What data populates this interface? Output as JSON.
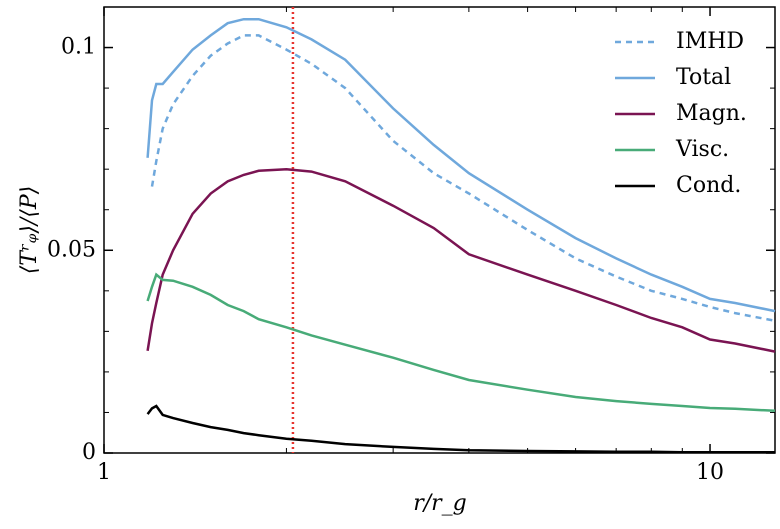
{
  "chart_data": {
    "type": "line",
    "xlabel": "r/r_g",
    "ylabel": "⟨Tʳᵩ⟩/⟨P⟩",
    "x": [
      1.18,
      1.2,
      1.22,
      1.25,
      1.3,
      1.4,
      1.5,
      1.6,
      1.7,
      1.8,
      2.0,
      2.2,
      2.5,
      3,
      3.5,
      4,
      5,
      6,
      7,
      8,
      9,
      10,
      11,
      12.8
    ],
    "series": [
      {
        "name": "IMHD",
        "color": "#6fa8dc",
        "dashed": true,
        "values": [
          null,
          0.0657,
          0.072,
          0.08,
          0.086,
          0.093,
          0.098,
          0.101,
          0.103,
          0.103,
          0.0995,
          0.096,
          0.09,
          0.077,
          0.069,
          0.064,
          0.055,
          0.048,
          0.0435,
          0.04,
          0.038,
          0.036,
          0.0345,
          0.0326
        ]
      },
      {
        "name": "Total",
        "color": "#6fa8dc",
        "dashed": false,
        "values": [
          0.0728,
          0.087,
          0.091,
          0.091,
          0.094,
          0.0995,
          0.103,
          0.106,
          0.107,
          0.107,
          0.105,
          0.102,
          0.097,
          0.085,
          0.076,
          0.069,
          0.06,
          0.053,
          0.048,
          0.044,
          0.041,
          0.038,
          0.037,
          0.035
        ]
      },
      {
        "name": "Magn.",
        "color": "#7a1452",
        "dashed": false,
        "values": [
          0.0252,
          0.032,
          0.037,
          0.044,
          0.05,
          0.059,
          0.064,
          0.067,
          0.0686,
          0.0696,
          0.07,
          0.0694,
          0.067,
          0.061,
          0.0555,
          0.049,
          0.044,
          0.04,
          0.0365,
          0.0333,
          0.031,
          0.028,
          0.027,
          0.025
        ]
      },
      {
        "name": "Visc.",
        "color": "#48ab78",
        "dashed": false,
        "values": [
          0.0375,
          0.041,
          0.044,
          0.0427,
          0.0425,
          0.041,
          0.039,
          0.0365,
          0.035,
          0.033,
          0.031,
          0.029,
          0.0267,
          0.0235,
          0.0205,
          0.018,
          0.0156,
          0.0138,
          0.0128,
          0.0121,
          0.0116,
          0.0111,
          0.0109,
          0.0104
        ]
      },
      {
        "name": "Cond.",
        "color": "#000000",
        "dashed": false,
        "values": [
          0.0096,
          0.011,
          0.0116,
          0.0094,
          0.0086,
          0.0074,
          0.0064,
          0.0057,
          0.0049,
          0.0044,
          0.0035,
          0.003,
          0.0022,
          0.0015,
          0.001,
          0.0007,
          0.0005,
          0.0004,
          0.0003,
          0.0003,
          0.0002,
          0.0002,
          0.0002,
          0.0002
        ]
      }
    ],
    "xscale": "log",
    "xlim": [
      1,
      12.8
    ],
    "ylim": [
      0,
      0.11
    ],
    "xticks": [
      1,
      10
    ],
    "yticks": [
      0,
      0.05,
      0.1
    ],
    "xminorticks": [
      2,
      3,
      4,
      5,
      6,
      7,
      8,
      9
    ],
    "yminorticks": [
      0.01,
      0.02,
      0.03,
      0.04,
      0.06,
      0.07,
      0.08,
      0.09
    ],
    "vline": {
      "x": 2.05,
      "color": "#e8342e"
    },
    "legend": "upper right"
  }
}
